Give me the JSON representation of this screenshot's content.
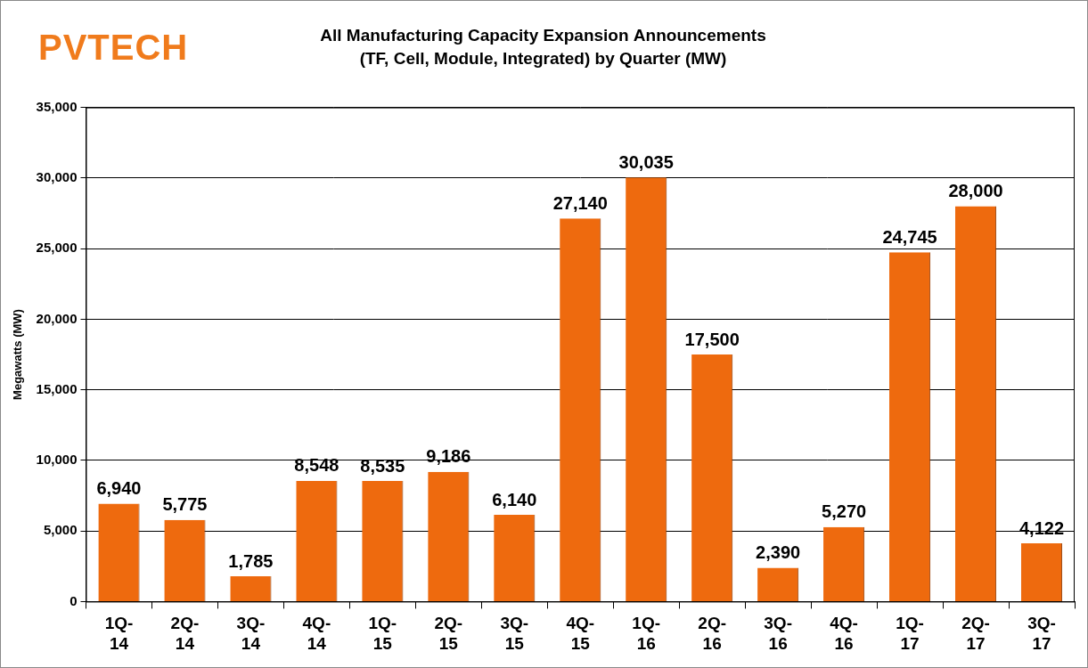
{
  "chart_data": {
    "type": "bar",
    "title": "All Manufacturing Capacity Expansion Announcements",
    "subtitle": "(TF, Cell, Module, Integrated) by Quarter (MW)",
    "y_label": "Megawatts (MW)",
    "annotations": [
      "PVTECH"
    ],
    "categories": [
      "1Q-14",
      "2Q-14",
      "3Q-14",
      "4Q-14",
      "1Q-15",
      "2Q-15",
      "3Q-15",
      "4Q-15",
      "1Q-16",
      "2Q-16",
      "3Q-16",
      "4Q-16",
      "1Q-17",
      "2Q-17",
      "3Q-17"
    ],
    "values": [
      6940,
      5775,
      1785,
      8548,
      8535,
      9186,
      6140,
      27140,
      30035,
      17500,
      2390,
      5270,
      24745,
      28000,
      4122
    ],
    "value_labels": [
      "6,940",
      "5,775",
      "1,785",
      "8,548",
      "8,535",
      "9,186",
      "6,140",
      "27,140",
      "30,035",
      "17,500",
      "2,390",
      "5,270",
      "24,745",
      "28,000",
      "4,122"
    ],
    "color": "#ee6a0e",
    "ylim": [
      0,
      35000
    ],
    "yticks": [
      0,
      {
        "value": 5000,
        "label": "5,000"
      },
      {
        "value": 10000,
        "label": "10,000"
      },
      {
        "value": 15000,
        "label": "15,000"
      },
      {
        "value": 20000,
        "label": "20,000"
      },
      {
        "value": 25000,
        "label": "25,000"
      },
      {
        "value": 30000,
        "label": "30,000"
      },
      {
        "value": 35000,
        "label": "35,000"
      }
    ],
    "grid": true,
    "data_labels": true
  }
}
